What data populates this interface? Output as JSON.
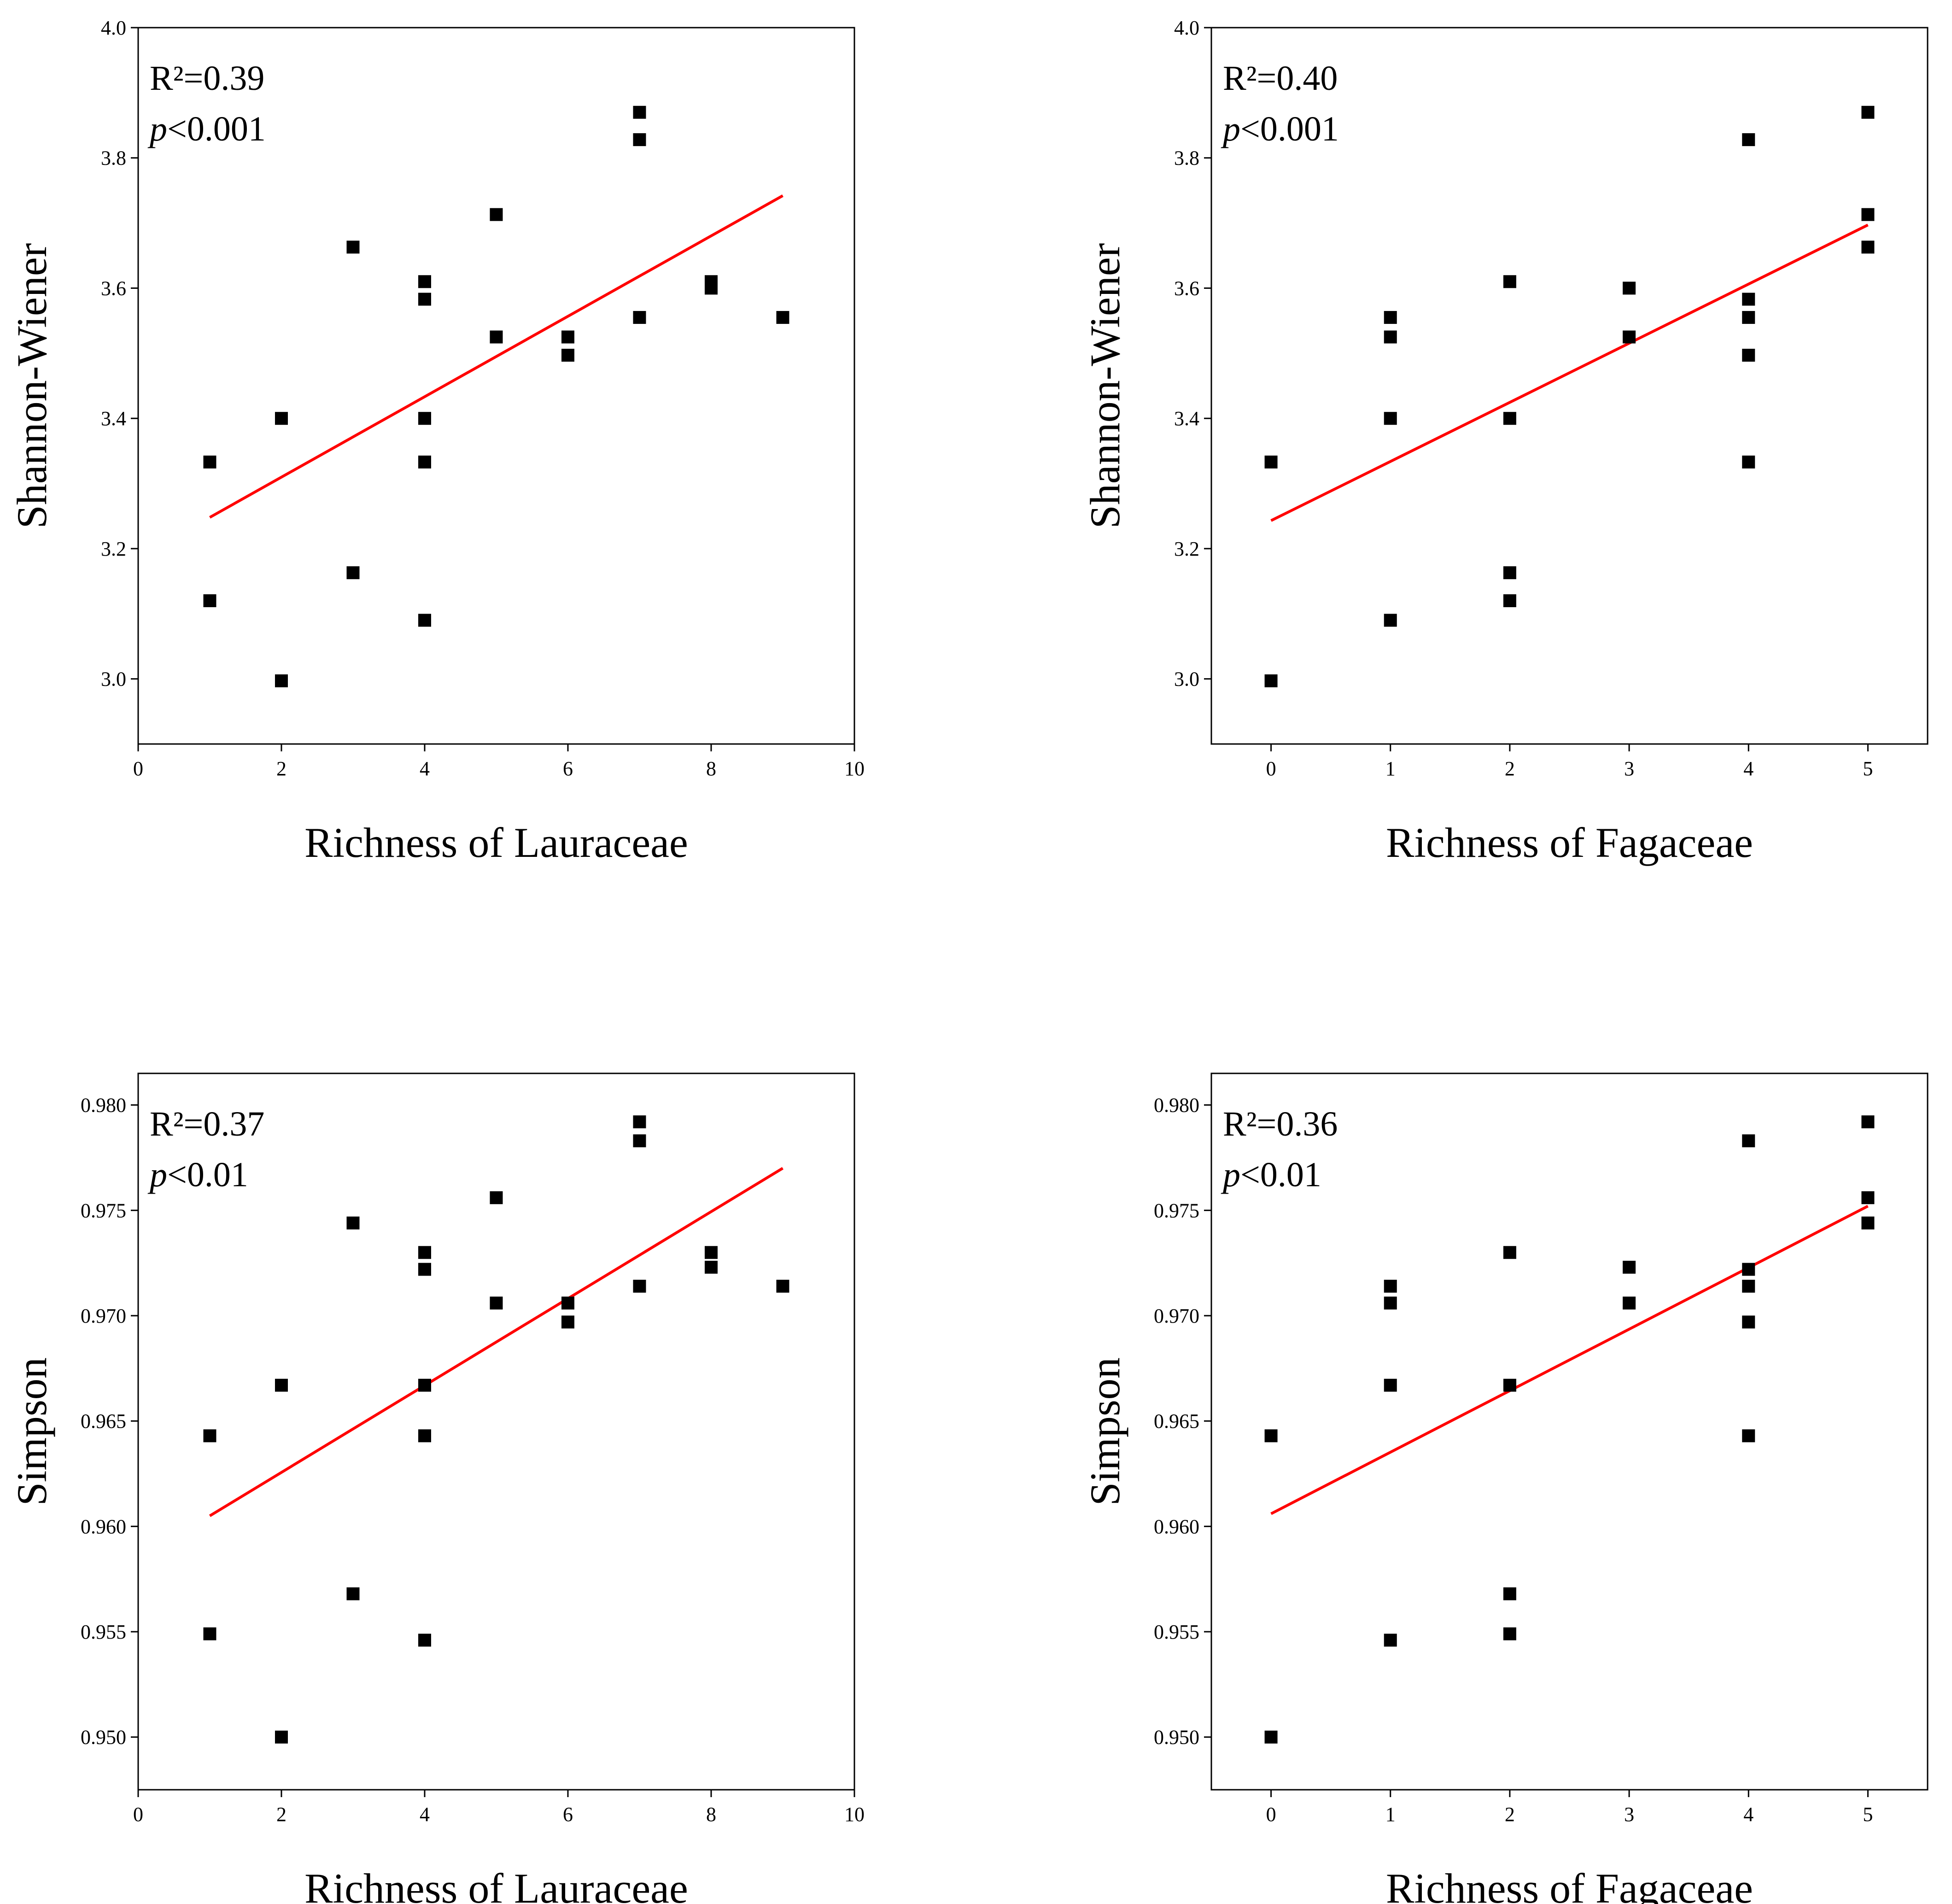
{
  "figure": {
    "colors": {
      "points": "#000000",
      "fit_line": "#ff0000",
      "frame": "#000000"
    }
  },
  "chart_data": [
    {
      "id": "shannon-lauraceae",
      "type": "scatter",
      "xlabel": "Richness of Lauraceae",
      "ylabel": "Shannon-Wiener",
      "xlim": [
        0,
        10
      ],
      "ylim": [
        2.9,
        4.0
      ],
      "xticks": [
        0,
        2,
        4,
        6,
        8,
        10
      ],
      "xtick_labels": [
        "0",
        "2",
        "4",
        "6",
        "8",
        "10"
      ],
      "yticks": [
        3.0,
        3.2,
        3.4,
        3.6,
        3.8,
        4.0
      ],
      "ytick_labels": [
        "3.0",
        "3.2",
        "3.4",
        "3.6",
        "3.8",
        "4.0"
      ],
      "annotation": {
        "r2": "R²=0.39",
        "p_symbol": "p",
        "p_value": "<0.001"
      },
      "points": [
        [
          1,
          3.333
        ],
        [
          1,
          3.12
        ],
        [
          2,
          3.4
        ],
        [
          2,
          2.997
        ],
        [
          3,
          3.663
        ],
        [
          3,
          3.163
        ],
        [
          4,
          3.61
        ],
        [
          4,
          3.583
        ],
        [
          4,
          3.4
        ],
        [
          4,
          3.333
        ],
        [
          4,
          3.09
        ],
        [
          5,
          3.713
        ],
        [
          5,
          3.525
        ],
        [
          6,
          3.525
        ],
        [
          6,
          3.497
        ],
        [
          7,
          3.87
        ],
        [
          7,
          3.828
        ],
        [
          7,
          3.555
        ],
        [
          8,
          3.61
        ],
        [
          8,
          3.6
        ],
        [
          9,
          3.555
        ]
      ],
      "fit_line": {
        "x": [
          1,
          9
        ],
        "y": [
          3.248,
          3.742
        ]
      }
    },
    {
      "id": "shannon-fagaceae",
      "type": "scatter",
      "xlabel": "Richness of Fagaceae",
      "ylabel": "Shannon-Wiener",
      "xlim": [
        -0.5,
        5.5
      ],
      "ylim": [
        2.9,
        4.0
      ],
      "xticks": [
        0,
        1,
        2,
        3,
        4,
        5
      ],
      "xtick_labels": [
        "0",
        "1",
        "2",
        "3",
        "4",
        "5"
      ],
      "yticks": [
        3.0,
        3.2,
        3.4,
        3.6,
        3.8,
        4.0
      ],
      "ytick_labels": [
        "3.0",
        "3.2",
        "3.4",
        "3.6",
        "3.8",
        "4.0"
      ],
      "annotation": {
        "r2": "R²=0.40",
        "p_symbol": "p",
        "p_value": "<0.001"
      },
      "points": [
        [
          0,
          3.333
        ],
        [
          0,
          2.997
        ],
        [
          1,
          3.555
        ],
        [
          1,
          3.525
        ],
        [
          1,
          3.4
        ],
        [
          1,
          3.09
        ],
        [
          2,
          3.61
        ],
        [
          2,
          3.4
        ],
        [
          2,
          3.163
        ],
        [
          2,
          3.12
        ],
        [
          3,
          3.6
        ],
        [
          3,
          3.525
        ],
        [
          4,
          3.828
        ],
        [
          4,
          3.583
        ],
        [
          4,
          3.555
        ],
        [
          4,
          3.497
        ],
        [
          4,
          3.333
        ],
        [
          5,
          3.87
        ],
        [
          5,
          3.713
        ],
        [
          5,
          3.663
        ]
      ],
      "fit_line": {
        "x": [
          0,
          5
        ],
        "y": [
          3.243,
          3.697
        ]
      }
    },
    {
      "id": "simpson-lauraceae",
      "type": "scatter",
      "xlabel": "Richness of  Lauraceae",
      "ylabel": "Simpson",
      "xlim": [
        0,
        10
      ],
      "ylim": [
        0.9475,
        0.9815
      ],
      "xticks": [
        0,
        2,
        4,
        6,
        8,
        10
      ],
      "xtick_labels": [
        "0",
        "2",
        "4",
        "6",
        "8",
        "10"
      ],
      "yticks": [
        0.95,
        0.955,
        0.96,
        0.965,
        0.97,
        0.975,
        0.98
      ],
      "ytick_labels": [
        "0.950",
        "0.955",
        "0.960",
        "0.965",
        "0.970",
        "0.975",
        "0.980"
      ],
      "annotation": {
        "r2": "R²=0.37",
        "p_symbol": "p",
        "p_value": "<0.01"
      },
      "points": [
        [
          1,
          0.9643
        ],
        [
          1,
          0.9549
        ],
        [
          2,
          0.9667
        ],
        [
          2,
          0.95
        ],
        [
          3,
          0.9744
        ],
        [
          3,
          0.9568
        ],
        [
          4,
          0.973
        ],
        [
          4,
          0.9722
        ],
        [
          4,
          0.9667
        ],
        [
          4,
          0.9643
        ],
        [
          4,
          0.9546
        ],
        [
          5,
          0.9756
        ],
        [
          5,
          0.9706
        ],
        [
          6,
          0.9706
        ],
        [
          6,
          0.9697
        ],
        [
          7,
          0.9792
        ],
        [
          7,
          0.9783
        ],
        [
          7,
          0.9714
        ],
        [
          8,
          0.973
        ],
        [
          8,
          0.9723
        ],
        [
          9,
          0.9714
        ]
      ],
      "fit_line": {
        "x": [
          1,
          9
        ],
        "y": [
          0.9605,
          0.977
        ]
      }
    },
    {
      "id": "simpson-fagaceae",
      "type": "scatter",
      "xlabel": "Richness of  Fagaceae",
      "ylabel": "Simpson",
      "xlim": [
        -0.5,
        5.5
      ],
      "ylim": [
        0.9475,
        0.9815
      ],
      "xticks": [
        0,
        1,
        2,
        3,
        4,
        5
      ],
      "xtick_labels": [
        "0",
        "1",
        "2",
        "3",
        "4",
        "5"
      ],
      "yticks": [
        0.95,
        0.955,
        0.96,
        0.965,
        0.97,
        0.975,
        0.98
      ],
      "ytick_labels": [
        "0.950",
        "0.955",
        "0.960",
        "0.965",
        "0.970",
        "0.975",
        "0.980"
      ],
      "annotation": {
        "r2": "R²=0.36",
        "p_symbol": "p",
        "p_value": "<0.01"
      },
      "points": [
        [
          0,
          0.9643
        ],
        [
          0,
          0.95
        ],
        [
          1,
          0.9714
        ],
        [
          1,
          0.9706
        ],
        [
          1,
          0.9667
        ],
        [
          1,
          0.9546
        ],
        [
          2,
          0.973
        ],
        [
          2,
          0.9667
        ],
        [
          2,
          0.9568
        ],
        [
          2,
          0.9549
        ],
        [
          3,
          0.9723
        ],
        [
          3,
          0.9706
        ],
        [
          4,
          0.9783
        ],
        [
          4,
          0.9722
        ],
        [
          4,
          0.9714
        ],
        [
          4,
          0.9697
        ],
        [
          4,
          0.9643
        ],
        [
          5,
          0.9792
        ],
        [
          5,
          0.9756
        ],
        [
          5,
          0.9744
        ]
      ],
      "fit_line": {
        "x": [
          0,
          5
        ],
        "y": [
          0.9606,
          0.9752
        ]
      }
    }
  ]
}
